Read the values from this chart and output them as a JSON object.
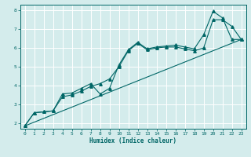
{
  "xlabel": "Humidex (Indice chaleur)",
  "bg_color": "#d4ecec",
  "grid_color": "#b8d8d8",
  "line_color": "#006666",
  "xlim": [
    -0.5,
    23.5
  ],
  "ylim": [
    1.7,
    8.3
  ],
  "xticks": [
    0,
    1,
    2,
    3,
    4,
    5,
    6,
    7,
    8,
    9,
    10,
    11,
    12,
    13,
    14,
    15,
    16,
    17,
    18,
    19,
    20,
    21,
    22,
    23
  ],
  "yticks": [
    2,
    3,
    4,
    5,
    6,
    7,
    8
  ],
  "line1_x": [
    0,
    1,
    2,
    3,
    4,
    5,
    6,
    7,
    8,
    9,
    10,
    11,
    12,
    13,
    14,
    15,
    16,
    17,
    18,
    19,
    20,
    21,
    22,
    23
  ],
  "line1_y": [
    1.85,
    2.55,
    2.6,
    2.65,
    3.55,
    3.6,
    3.85,
    4.1,
    3.55,
    3.85,
    5.1,
    5.9,
    6.3,
    5.95,
    6.05,
    6.1,
    6.15,
    6.05,
    5.95,
    6.7,
    7.95,
    7.6,
    6.45,
    6.45
  ],
  "line2_x": [
    0,
    1,
    2,
    3,
    4,
    5,
    6,
    7,
    8,
    9,
    10,
    11,
    12,
    13,
    14,
    15,
    16,
    17,
    18,
    19,
    20,
    21,
    22,
    23
  ],
  "line2_y": [
    1.85,
    2.55,
    2.6,
    2.65,
    3.4,
    3.5,
    3.7,
    3.95,
    4.1,
    4.35,
    5.0,
    5.85,
    6.25,
    5.9,
    6.0,
    6.05,
    6.05,
    5.95,
    5.85,
    6.0,
    7.5,
    7.5,
    7.15,
    6.45
  ],
  "line3_x": [
    0,
    23
  ],
  "line3_y": [
    1.85,
    6.45
  ],
  "marker_size": 2.5,
  "line_width": 0.8
}
